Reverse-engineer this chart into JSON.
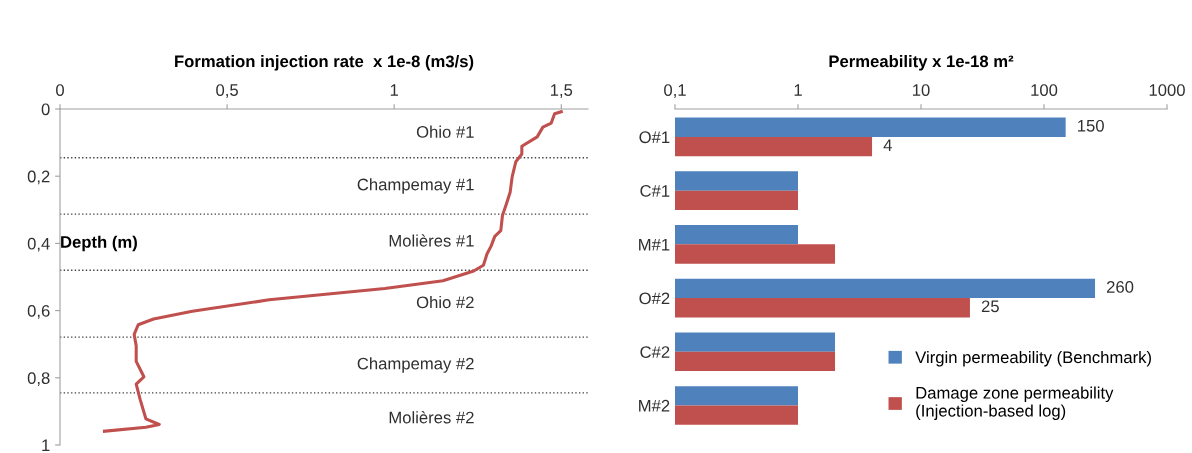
{
  "chart_data": [
    {
      "type": "line",
      "xlabel": "Formation injection rate  x 1e-8 (m3/s)",
      "ylabel": "Depth (m)",
      "xlim": [
        0,
        1.58
      ],
      "xticks": [
        0,
        {
          "value": 0.5,
          "label": "0,5"
        },
        1,
        {
          "value": 1.5,
          "label": "1,5"
        }
      ],
      "ylim": [
        1,
        0
      ],
      "yticks": [
        0,
        {
          "value": 0.2,
          "label": "0,2"
        },
        {
          "value": 0.4,
          "label": "0,4"
        },
        {
          "value": 0.6,
          "label": "0,6"
        },
        {
          "value": 0.8,
          "label": "0,8"
        },
        1
      ],
      "grid": false,
      "legend": false,
      "marker": "none",
      "line_style": "solid",
      "series": [
        {
          "color": "#c0504d",
          "x": [
            1.5,
            1.48,
            1.47,
            1.445,
            1.428,
            1.382,
            1.382,
            1.364,
            1.353,
            1.347,
            1.336,
            1.324,
            1.319,
            1.301,
            1.29,
            1.278,
            1.267,
            1.238,
            1.146,
            0.972,
            0.626,
            0.396,
            0.28,
            0.234,
            0.222,
            0.228,
            0.228,
            0.251,
            0.228,
            0.24,
            0.257,
            0.297,
            0.257,
            0.133
          ],
          "values": [
            0.008,
            0.014,
            0.042,
            0.054,
            0.083,
            0.111,
            0.134,
            0.157,
            0.202,
            0.248,
            0.282,
            0.317,
            0.362,
            0.379,
            0.408,
            0.431,
            0.465,
            0.482,
            0.511,
            0.534,
            0.568,
            0.602,
            0.625,
            0.642,
            0.671,
            0.705,
            0.751,
            0.797,
            0.819,
            0.865,
            0.922,
            0.939,
            0.947,
            0.959
          ]
        }
      ],
      "ref_lines": [
        {
          "axis": "y",
          "value": 0.145,
          "color": "#404040",
          "line_style": "dotted"
        },
        {
          "axis": "y",
          "value": 0.313,
          "color": "#404040",
          "line_style": "dotted"
        },
        {
          "axis": "y",
          "value": 0.48,
          "color": "#404040",
          "line_style": "dotted"
        },
        {
          "axis": "y",
          "value": 0.679,
          "color": "#404040",
          "line_style": "dotted"
        },
        {
          "axis": "y",
          "value": 0.845,
          "color": "#404040",
          "line_style": "dotted"
        }
      ],
      "annotations": [
        "Ohio #1",
        "Champemay #1",
        "Molières #1",
        "Ohio #2",
        "Champemay #2",
        "Molières #2"
      ]
    },
    {
      "type": "bar",
      "orientation": "horizontal",
      "xlabel": "Permeability x 1e-18 m²",
      "log": "x",
      "xlim": [
        0.1,
        1000
      ],
      "xticks": [
        {
          "value": 0.1,
          "label": "0,1"
        },
        1,
        10,
        100,
        1000
      ],
      "categories": [
        "O#1",
        "C#1",
        "M#1",
        "O#2",
        "C#2",
        "M#2"
      ],
      "grid": false,
      "legend": "bottom right",
      "series": [
        {
          "name": "Virgin permeability (Benchmark)",
          "color": "#4f81bd",
          "values": [
            150,
            1,
            1,
            260,
            2,
            1
          ],
          "value_labels": [
            "150",
            null,
            null,
            "260",
            null,
            null
          ]
        },
        {
          "name": "Damage zone permeability\n(Injection-based log)",
          "color": "#c0504d",
          "values": [
            4,
            1,
            2,
            25,
            2,
            1
          ],
          "value_labels": [
            "4",
            null,
            null,
            "25",
            null,
            null
          ]
        }
      ]
    }
  ]
}
